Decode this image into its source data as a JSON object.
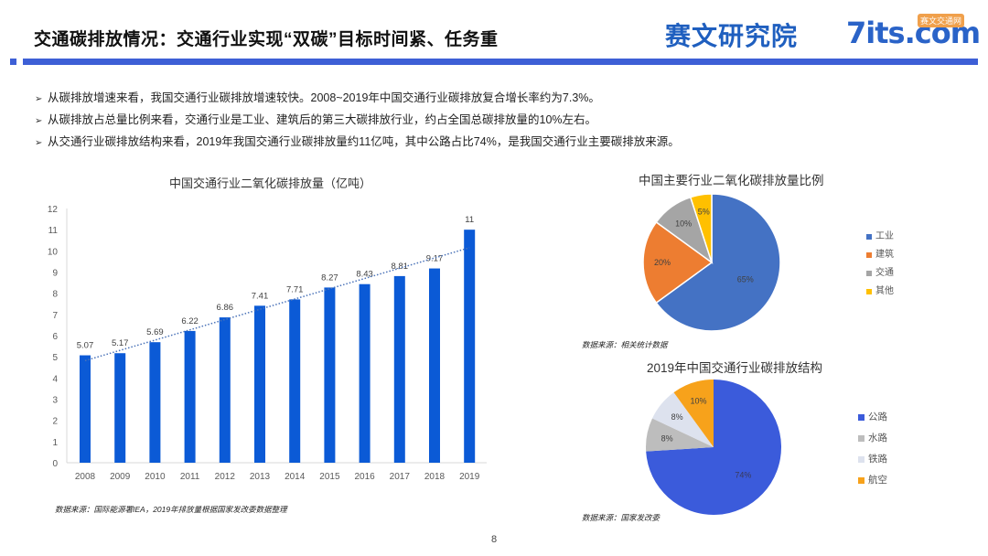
{
  "header": {
    "title": "交通碳排放情况：交通行业实现“双碳”目标时间紧、任务重",
    "logo_text": "赛文研究院",
    "logo_brand": "7its.com",
    "logo_badge": "赛文交通网",
    "accent_color": "#3d5fd6"
  },
  "bullets": [
    "从碳排放增速来看，我国交通行业碳排放增速较快。2008~2019年中国交通行业碳排放复合增长率约为7.3%。",
    "从碳排放占总量比例来看，交通行业是工业、建筑后的第三大碳排放行业，约占全国总碳排放量的10%左右。",
    "从交通行业碳排放结构来看，2019年我国交通行业碳排放量约11亿吨，其中公路占比74%，是我国交通行业主要碳排放来源。"
  ],
  "bullet_icon": "arrow-right-icon",
  "sources": {
    "bar": "数据来源：国际能源署IEA，2019年排放量根据国家发改委数据整理",
    "pie1": "数据来源：相关统计数据",
    "pie2": "数据来源：国家发改委"
  },
  "page_number": "8",
  "chart_data": [
    {
      "type": "bar",
      "title": "中国交通行业二氧化碳排放量（亿吨）",
      "categories": [
        "2008",
        "2009",
        "2010",
        "2011",
        "2012",
        "2013",
        "2014",
        "2015",
        "2016",
        "2017",
        "2018",
        "2019"
      ],
      "values": [
        5.07,
        5.17,
        5.69,
        6.22,
        6.86,
        7.41,
        7.71,
        8.27,
        8.43,
        8.81,
        9.17,
        11
      ],
      "data_labels": [
        "5.07",
        "5.17",
        "5.69",
        "6.22",
        "6.86",
        "7.41",
        "7.71",
        "8.27",
        "8.43",
        "8.81",
        "9.17",
        "11"
      ],
      "xlabel": "",
      "ylabel": "",
      "ylim": [
        0,
        12
      ],
      "yticks": [
        "0",
        "1",
        "2",
        "3",
        "4",
        "5",
        "6",
        "7",
        "8",
        "9",
        "10",
        "11",
        "12"
      ],
      "grid": false,
      "trendline": "linear, dotted",
      "bar_color": "#0b5ad6",
      "trend_color": "#4a72b8"
    },
    {
      "type": "pie",
      "title": "中国主要行业二氧化碳排放量比例",
      "labels": [
        "工业",
        "建筑",
        "交通",
        "其他"
      ],
      "values": [
        65,
        20,
        10,
        5
      ],
      "data_labels": [
        "65%",
        "20%",
        "10%",
        "5%"
      ],
      "colors": [
        "#4472c4",
        "#ed7d31",
        "#a5a5a5",
        "#ffc000"
      ],
      "legend_position": "right"
    },
    {
      "type": "pie",
      "title": "2019年中国交通行业碳排放结构",
      "labels": [
        "公路",
        "水路",
        "铁路",
        "航空"
      ],
      "values": [
        74,
        8,
        8,
        10
      ],
      "data_labels": [
        "74%",
        "8%",
        "8%",
        "10%"
      ],
      "colors": [
        "#3b5bdb",
        "#bdbdbd",
        "#dde2ee",
        "#f7a21b"
      ],
      "legend_position": "right"
    }
  ]
}
